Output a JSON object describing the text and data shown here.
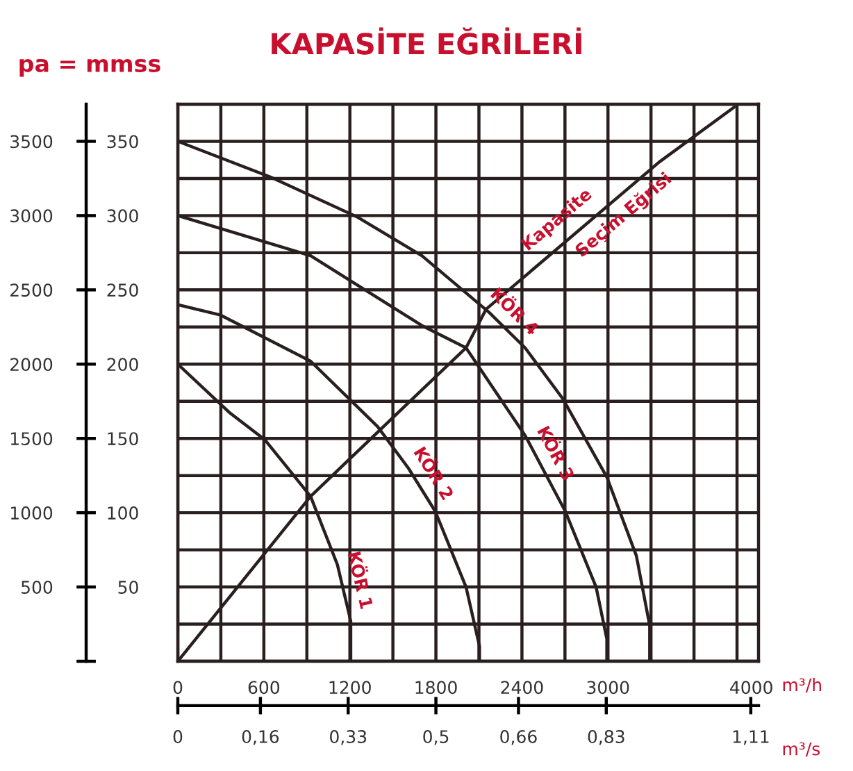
{
  "chart_data": {
    "type": "line",
    "title": "KAPASİTE EĞRİLERİ",
    "ylabel": "pa = mmss",
    "xlabel": "m³/h",
    "x2label": "m³/s",
    "series": [
      {
        "name": "KÖR 1",
        "color": "#2a1f1f",
        "x": [
          0,
          365,
          608,
          926,
          1113,
          1206,
          1206
        ],
        "values": [
          200,
          167,
          149,
          111,
          65,
          27,
          0
        ]
      },
      {
        "name": "KÖR 2",
        "color": "#2a1f1f",
        "x": [
          0,
          299,
          926,
          1393,
          1608,
          1795,
          2010,
          2104,
          2104
        ],
        "values": [
          240,
          233,
          202,
          158,
          130,
          101,
          50,
          10,
          0
        ]
      },
      {
        "name": "KÖR 3",
        "color": "#2a1f1f",
        "x": [
          0,
          926,
          1702,
          2010,
          2422,
          2702,
          2917,
          2992,
          2992
        ],
        "values": [
          300,
          273,
          226,
          211,
          152,
          101,
          50,
          15,
          0
        ]
      },
      {
        "name": "KÖR 4",
        "color": "#2a1f1f",
        "x": [
          0,
          645,
          1253,
          1702,
          2169,
          2422,
          2683,
          2992,
          3198,
          3291,
          3291
        ],
        "values": [
          350,
          326,
          299,
          273,
          235,
          211,
          177,
          124,
          71,
          24,
          0
        ]
      },
      {
        "name": "Kapasite Seçim Eğrisi",
        "color": "#2a1f1f",
        "x": [
          0,
          926,
          1608,
          2010,
          2150,
          3357,
          3880
        ],
        "values": [
          0,
          111,
          174,
          211,
          237,
          336,
          373
        ]
      }
    ],
    "xlim": [
      0,
      4050
    ],
    "ylim": [
      0,
      375
    ],
    "xticks": [
      0,
      600,
      1200,
      1800,
      2400,
      3000,
      4000
    ],
    "yticks": [
      {
        "value": 0,
        "label": null
      },
      50,
      100,
      150,
      200,
      250,
      300,
      350
    ],
    "y2lim": [
      0,
      3750
    ],
    "y2ticks": [
      {
        "value": 0,
        "label": null
      },
      500,
      1000,
      1500,
      2000,
      2500,
      3000,
      3500
    ],
    "x2lim": [
      0,
      1.125
    ],
    "x2ticks": [
      0,
      {
        "value": 0.16,
        "label": "0,16"
      },
      {
        "value": 0.33,
        "label": "0,33"
      },
      {
        "value": 0.5,
        "label": "0,5"
      },
      {
        "value": 0.66,
        "label": "0,66"
      },
      {
        "value": 0.83,
        "label": "0,83"
      },
      {
        "value": 1.11,
        "label": "1,11"
      }
    ],
    "grid": true,
    "marker": "none",
    "line_style": "solid"
  }
}
